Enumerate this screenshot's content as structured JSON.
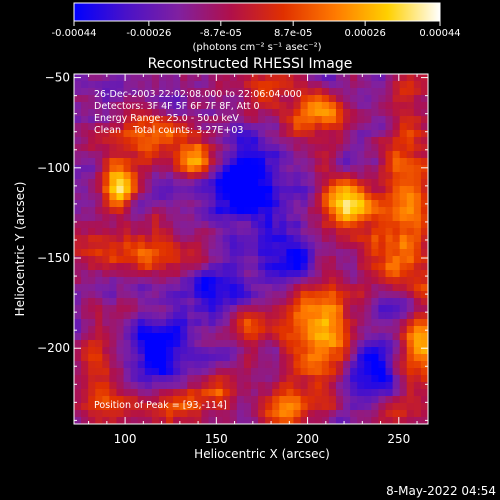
{
  "colorbar": {
    "tick_labels": [
      "-0.00044",
      "-0.00026",
      "-8.7e-05",
      "8.7e-05",
      "0.00026",
      "0.00044"
    ],
    "tick_values": [
      -0.00044,
      -0.00026,
      -8.7e-05,
      8.7e-05,
      0.00026,
      0.00044
    ],
    "range": [
      -0.00044,
      0.00044
    ],
    "unit_label": "(photons cm⁻² s⁻¹ asec⁻²)",
    "stops": [
      "#0000ff",
      "#4a12c8",
      "#8020a0",
      "#b0104a",
      "#e03000",
      "#ff7a00",
      "#ffd000",
      "#ffffff"
    ]
  },
  "chart_data": {
    "type": "heatmap",
    "title": "Reconstructed RHESSI Image",
    "xlabel": "Heliocentric X (arcsec)",
    "ylabel": "Heliocentric Y (arcsec)",
    "xlim": [
      72,
      266
    ],
    "ylim": [
      -242,
      -48
    ],
    "xticks": [
      100,
      150,
      200,
      250
    ],
    "yticks": [
      -50,
      -100,
      -150,
      -200
    ],
    "xtick_labels": [
      "100",
      "150",
      "200",
      "250"
    ],
    "ytick_labels": [
      "−50",
      "−100",
      "−150",
      "−200"
    ],
    "annotations": [
      "26-Dec-2003 22:02:08.000 to 22:06:04.000",
      "Detectors: 3F 4F 5F 6F 7F 8F, Att 0",
      "Energy Range: 25.0 - 50.0 keV",
      "Clean    Total counts: 3.27E+03"
    ],
    "peak_label": "Position of Peak = [93,-114]",
    "peak_position": [
      93,
      -114
    ],
    "sources": [
      {
        "x": 96,
        "y": -110,
        "amp": 1.0,
        "sx": 7,
        "sy": 11
      },
      {
        "x": 118,
        "y": -82,
        "amp": 0.55,
        "sx": 16,
        "sy": 8
      },
      {
        "x": 140,
        "y": -96,
        "amp": 0.85,
        "sx": 8,
        "sy": 7
      },
      {
        "x": 208,
        "y": -196,
        "amp": 0.95,
        "sx": 13,
        "sy": 24
      },
      {
        "x": 222,
        "y": -122,
        "amp": 0.85,
        "sx": 12,
        "sy": 11
      },
      {
        "x": 256,
        "y": -120,
        "amp": 0.65,
        "sx": 9,
        "sy": 40
      },
      {
        "x": 262,
        "y": -200,
        "amp": 0.75,
        "sx": 8,
        "sy": 14
      },
      {
        "x": 205,
        "y": -70,
        "amp": 0.65,
        "sx": 14,
        "sy": 9
      },
      {
        "x": 110,
        "y": -148,
        "amp": 0.45,
        "sx": 28,
        "sy": 9
      },
      {
        "x": 88,
        "y": -220,
        "amp": 0.5,
        "sx": 10,
        "sy": 22
      },
      {
        "x": 130,
        "y": -230,
        "amp": 0.55,
        "sx": 12,
        "sy": 9
      },
      {
        "x": 170,
        "y": -188,
        "amp": 0.45,
        "sx": 8,
        "sy": 8
      },
      {
        "x": 150,
        "y": -222,
        "amp": 0.4,
        "sx": 10,
        "sy": 7
      },
      {
        "x": 185,
        "y": -235,
        "amp": 0.5,
        "sx": 10,
        "sy": 8
      },
      {
        "x": 250,
        "y": -235,
        "amp": 0.45,
        "sx": 10,
        "sy": 8
      },
      {
        "x": 180,
        "y": -55,
        "amp": 0.4,
        "sx": 12,
        "sy": 6
      },
      {
        "x": 240,
        "y": -150,
        "amp": 0.35,
        "sx": 10,
        "sy": 10
      }
    ],
    "cool_spots": [
      {
        "x": 165,
        "y": -110,
        "amp": -0.7,
        "sx": 14,
        "sy": 14
      },
      {
        "x": 120,
        "y": -205,
        "amp": -0.6,
        "sx": 14,
        "sy": 14
      },
      {
        "x": 230,
        "y": -215,
        "amp": -0.55,
        "sx": 14,
        "sy": 14
      },
      {
        "x": 185,
        "y": -150,
        "amp": -0.45,
        "sx": 18,
        "sy": 12
      },
      {
        "x": 250,
        "y": -180,
        "amp": -0.4,
        "sx": 9,
        "sy": 9
      },
      {
        "x": 150,
        "y": -170,
        "amp": -0.4,
        "sx": 14,
        "sy": 10
      }
    ]
  },
  "footer": {
    "date": "8-May-2022 04:54"
  }
}
